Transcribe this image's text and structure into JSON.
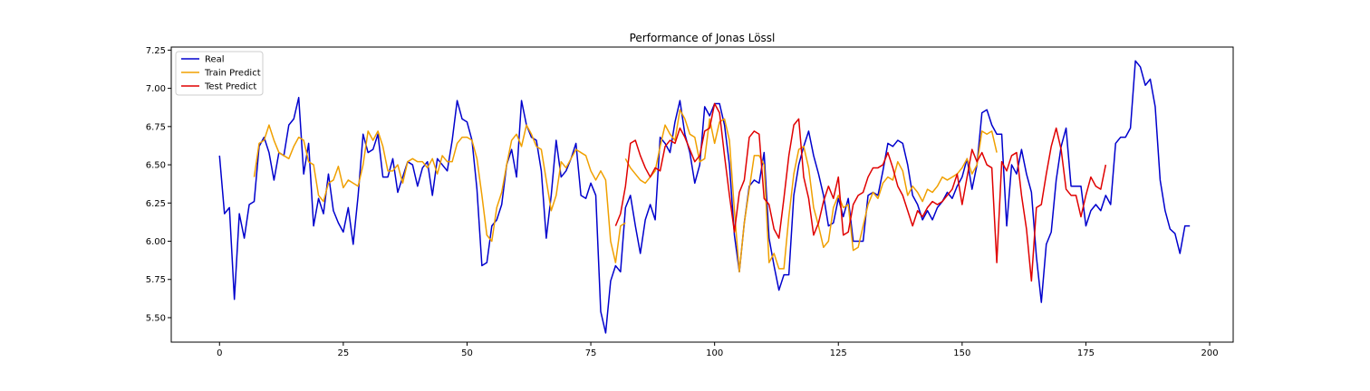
{
  "chart_data": {
    "type": "line",
    "title": "Performance of Jonas Lössl",
    "xlabel": "",
    "ylabel": "",
    "xlim": [
      -9.75,
      204.75
    ],
    "ylim": [
      5.34,
      7.27
    ],
    "x_ticks": [
      0,
      25,
      50,
      75,
      100,
      125,
      150,
      175,
      200
    ],
    "y_ticks": [
      5.5,
      5.75,
      6.0,
      6.25,
      6.5,
      6.75,
      7.0,
      7.25
    ],
    "x_tick_labels": [
      "0",
      "25",
      "50",
      "75",
      "100",
      "125",
      "150",
      "175",
      "200"
    ],
    "y_tick_labels": [
      "5.50",
      "5.75",
      "6.00",
      "6.25",
      "6.50",
      "6.75",
      "7.00",
      "7.25"
    ],
    "grid": false,
    "legend_position": "top-left",
    "series": [
      {
        "name": "Real",
        "color": "#0000cd",
        "x_start": 0,
        "values": [
          6.56,
          6.18,
          6.22,
          5.62,
          6.18,
          6.02,
          6.24,
          6.26,
          6.62,
          6.68,
          6.58,
          6.4,
          6.58,
          6.56,
          6.76,
          6.8,
          6.94,
          6.44,
          6.64,
          6.1,
          6.28,
          6.18,
          6.44,
          6.2,
          6.12,
          6.06,
          6.22,
          5.98,
          6.3,
          6.7,
          6.58,
          6.6,
          6.7,
          6.42,
          6.42,
          6.54,
          6.32,
          6.42,
          6.52,
          6.5,
          6.36,
          6.48,
          6.52,
          6.3,
          6.54,
          6.5,
          6.46,
          6.66,
          6.92,
          6.8,
          6.78,
          6.66,
          6.34,
          5.84,
          5.86,
          6.1,
          6.14,
          6.24,
          6.5,
          6.6,
          6.42,
          6.92,
          6.76,
          6.68,
          6.66,
          6.46,
          6.02,
          6.3,
          6.66,
          6.42,
          6.46,
          6.54,
          6.64,
          6.3,
          6.28,
          6.38,
          6.3,
          5.54,
          5.4,
          5.74,
          5.84,
          5.8,
          6.22,
          6.3,
          6.1,
          5.92,
          6.14,
          6.24,
          6.14,
          6.68,
          6.64,
          6.58,
          6.78,
          6.92,
          6.7,
          6.58,
          6.38,
          6.5,
          6.88,
          6.82,
          6.9,
          6.9,
          6.76,
          6.5,
          6.04,
          5.8,
          6.12,
          6.36,
          6.4,
          6.38,
          6.58,
          6.02,
          5.84,
          5.68,
          5.78,
          5.78,
          6.3,
          6.5,
          6.62,
          6.72,
          6.56,
          6.44,
          6.3,
          6.1,
          6.12,
          6.28,
          6.16,
          6.28,
          6.0,
          6.0,
          6.0,
          6.3,
          6.32,
          6.3,
          6.46,
          6.64,
          6.62,
          6.66,
          6.64,
          6.5,
          6.3,
          6.24,
          6.14,
          6.2,
          6.14,
          6.22,
          6.26,
          6.32,
          6.28,
          6.36,
          6.42,
          6.54,
          6.34,
          6.5,
          6.84,
          6.86,
          6.76,
          6.7,
          6.7,
          6.1,
          6.5,
          6.44,
          6.6,
          6.44,
          6.32,
          5.9,
          5.6,
          5.98,
          6.06,
          6.4,
          6.62,
          6.74,
          6.36,
          6.36,
          6.36,
          6.1,
          6.2,
          6.24,
          6.2,
          6.3,
          6.24,
          6.64,
          6.68,
          6.68,
          6.74,
          7.18,
          7.14,
          7.02,
          7.06,
          6.88,
          6.4,
          6.2,
          6.08,
          6.05,
          5.92,
          6.1,
          6.1
        ]
      },
      {
        "name": "Train Predict",
        "color": "#f0a000",
        "x_start": 7,
        "values": [
          6.42,
          6.64,
          6.66,
          6.76,
          6.66,
          6.58,
          6.56,
          6.54,
          6.62,
          6.68,
          6.66,
          6.52,
          6.5,
          6.3,
          6.26,
          6.38,
          6.4,
          6.49,
          6.35,
          6.4,
          6.38,
          6.36,
          6.5,
          6.72,
          6.66,
          6.72,
          6.62,
          6.46,
          6.46,
          6.5,
          6.38,
          6.52,
          6.54,
          6.52,
          6.52,
          6.48,
          6.54,
          6.44,
          6.56,
          6.52,
          6.52,
          6.64,
          6.68,
          6.68,
          6.66,
          6.54,
          6.3,
          6.04,
          6.0,
          6.22,
          6.32,
          6.5,
          6.66,
          6.7,
          6.62,
          6.76,
          6.7,
          6.62,
          6.6,
          6.4,
          6.2,
          6.3,
          6.52,
          6.48,
          6.54,
          6.6,
          6.58,
          6.56,
          6.46,
          6.4,
          6.46,
          6.4,
          6.0,
          5.86,
          6.1,
          6.12
        ]
      },
      {
        "name": "Train Predict",
        "color": "#f0a000",
        "x_start": 82,
        "values": [
          6.54,
          6.48,
          6.44,
          6.4,
          6.38,
          6.42,
          6.46,
          6.62,
          6.76,
          6.7,
          6.66,
          6.86,
          6.8,
          6.7,
          6.68,
          6.52,
          6.54,
          6.8,
          6.64,
          6.78,
          6.8,
          6.66,
          6.2,
          5.8,
          6.12,
          6.34,
          6.56,
          6.56,
          6.5,
          5.86,
          5.92,
          5.82,
          5.82,
          6.16,
          6.44,
          6.6,
          6.62,
          6.48,
          6.22,
          6.1,
          5.96,
          6.0,
          6.22,
          6.3,
          6.22,
          6.24,
          5.94,
          5.96,
          6.1,
          6.24,
          6.32,
          6.28,
          6.38,
          6.42,
          6.4,
          6.52,
          6.46,
          6.3,
          6.36,
          6.32,
          6.26,
          6.34,
          6.32,
          6.36,
          6.42,
          6.4,
          6.42,
          6.44,
          6.48,
          6.54,
          6.44,
          6.5,
          6.72,
          6.7,
          6.72,
          6.58
        ]
      },
      {
        "name": "Test Predict",
        "color": "#e00000",
        "x_start": 80,
        "values": [
          6.1,
          6.18,
          6.36,
          6.64,
          6.66,
          6.56,
          6.48,
          6.42,
          6.48,
          6.46,
          6.62,
          6.66,
          6.64,
          6.74,
          6.68,
          6.6,
          6.52,
          6.56,
          6.72,
          6.74,
          6.9,
          6.84,
          6.56,
          6.3,
          6.06,
          6.32,
          6.4,
          6.68,
          6.72,
          6.7,
          6.28,
          6.24,
          6.08,
          6.02,
          6.28,
          6.56,
          6.76,
          6.8,
          6.42,
          6.28,
          6.04,
          6.12,
          6.26,
          6.36,
          6.28,
          6.42,
          6.04,
          6.06,
          6.24,
          6.3,
          6.32,
          6.42,
          6.48,
          6.48,
          6.5,
          6.58,
          6.48,
          6.36,
          6.3,
          6.2,
          6.1,
          6.2,
          6.16,
          6.22,
          6.26,
          6.24,
          6.26,
          6.3,
          6.34,
          6.44,
          6.24,
          6.42,
          6.6,
          6.52,
          6.58,
          6.5,
          6.48,
          5.86,
          6.52,
          6.46,
          6.56,
          6.58,
          6.3,
          6.08,
          5.74,
          6.22,
          6.24,
          6.44,
          6.62,
          6.74,
          6.6,
          6.34,
          6.3,
          6.3,
          6.16,
          6.3,
          6.42,
          6.36,
          6.34,
          6.5
        ]
      }
    ],
    "legend": [
      {
        "label": "Real",
        "color": "#0000cd"
      },
      {
        "label": "Train Predict",
        "color": "#f0a000"
      },
      {
        "label": "Test Predict",
        "color": "#e00000"
      }
    ]
  }
}
